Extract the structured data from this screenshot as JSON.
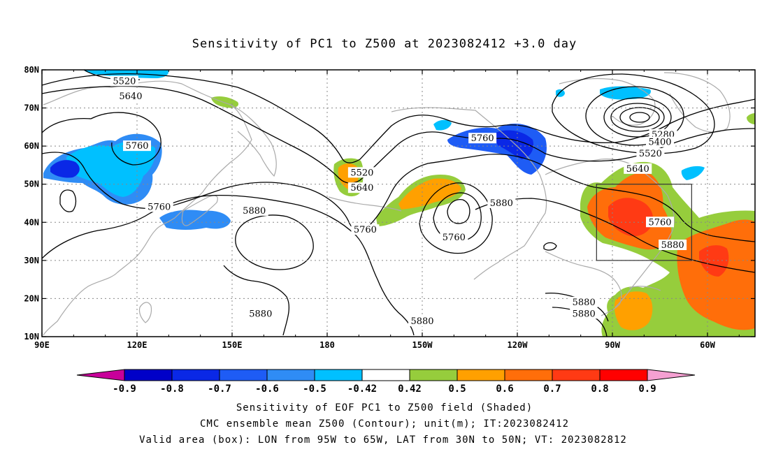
{
  "title": "Sensitivity of PC1 to Z500 at 2023082412 +3.0 day",
  "map": {
    "lon_ticks": [
      "90E",
      "120E",
      "150E",
      "180",
      "150W",
      "120W",
      "90W",
      "60W"
    ],
    "lat_ticks": [
      "80N",
      "70N",
      "60N",
      "50N",
      "40N",
      "30N",
      "20N",
      "10N"
    ],
    "lon_range": [
      90,
      315
    ],
    "lat_range": [
      10,
      80
    ],
    "grid": "dotted",
    "valid_box": {
      "lon": [
        265,
        295
      ],
      "lat": [
        30,
        50
      ]
    },
    "contour_color": "#000000",
    "coast_color": "#aaaaaa",
    "contour_labels": [
      {
        "text": "5520",
        "lon": 116,
        "lat": 77
      },
      {
        "text": "5640",
        "lon": 118,
        "lat": 73
      },
      {
        "text": "5760",
        "lon": 120,
        "lat": 60
      },
      {
        "text": "5760",
        "lon": 127,
        "lat": 44
      },
      {
        "text": "5880",
        "lon": 157,
        "lat": 43
      },
      {
        "text": "5880",
        "lon": 159,
        "lat": 16
      },
      {
        "text": "5520",
        "lon": 191,
        "lat": 53
      },
      {
        "text": "5640",
        "lon": 191,
        "lat": 49
      },
      {
        "text": "5760",
        "lon": 192,
        "lat": 38
      },
      {
        "text": "5760",
        "lon": 220,
        "lat": 36
      },
      {
        "text": "5760",
        "lon": 229,
        "lat": 62
      },
      {
        "text": "5880",
        "lon": 235,
        "lat": 45
      },
      {
        "text": "5880",
        "lon": 210,
        "lat": 14
      },
      {
        "text": "5280",
        "lon": 286,
        "lat": 63
      },
      {
        "text": "5400",
        "lon": 285,
        "lat": 61
      },
      {
        "text": "5520",
        "lon": 282,
        "lat": 58
      },
      {
        "text": "5640",
        "lon": 278,
        "lat": 54
      },
      {
        "text": "5760",
        "lon": 285,
        "lat": 40
      },
      {
        "text": "5880",
        "lon": 289,
        "lat": 34
      },
      {
        "text": "5880",
        "lon": 261,
        "lat": 19
      },
      {
        "text": "5880",
        "lon": 261,
        "lat": 16
      }
    ]
  },
  "colorbar": {
    "labels": [
      "-0.9",
      "-0.8",
      "-0.7",
      "-0.6",
      "-0.5",
      "-0.42",
      "0.42",
      "0.5",
      "0.6",
      "0.7",
      "0.8",
      "0.9"
    ],
    "colors": [
      "#c8009a",
      "#0000c8",
      "#0a28e6",
      "#1e5cf5",
      "#2f8cf5",
      "#00c0ff",
      "#ffffff",
      "#96cd3c",
      "#ffa000",
      "#ff6e0a",
      "#ff3a14",
      "#ff0000",
      "#f5a0d2"
    ]
  },
  "caption": {
    "line1": "Sensitivity of EOF PC1 to Z500 field (Shaded)",
    "line2": "CMC ensemble mean Z500 (Contour); unit(m); IT:2023082412",
    "line3": "Valid area (box): LON from 95W to 65W, LAT from 30N to 50N; VT: 2023082812"
  }
}
